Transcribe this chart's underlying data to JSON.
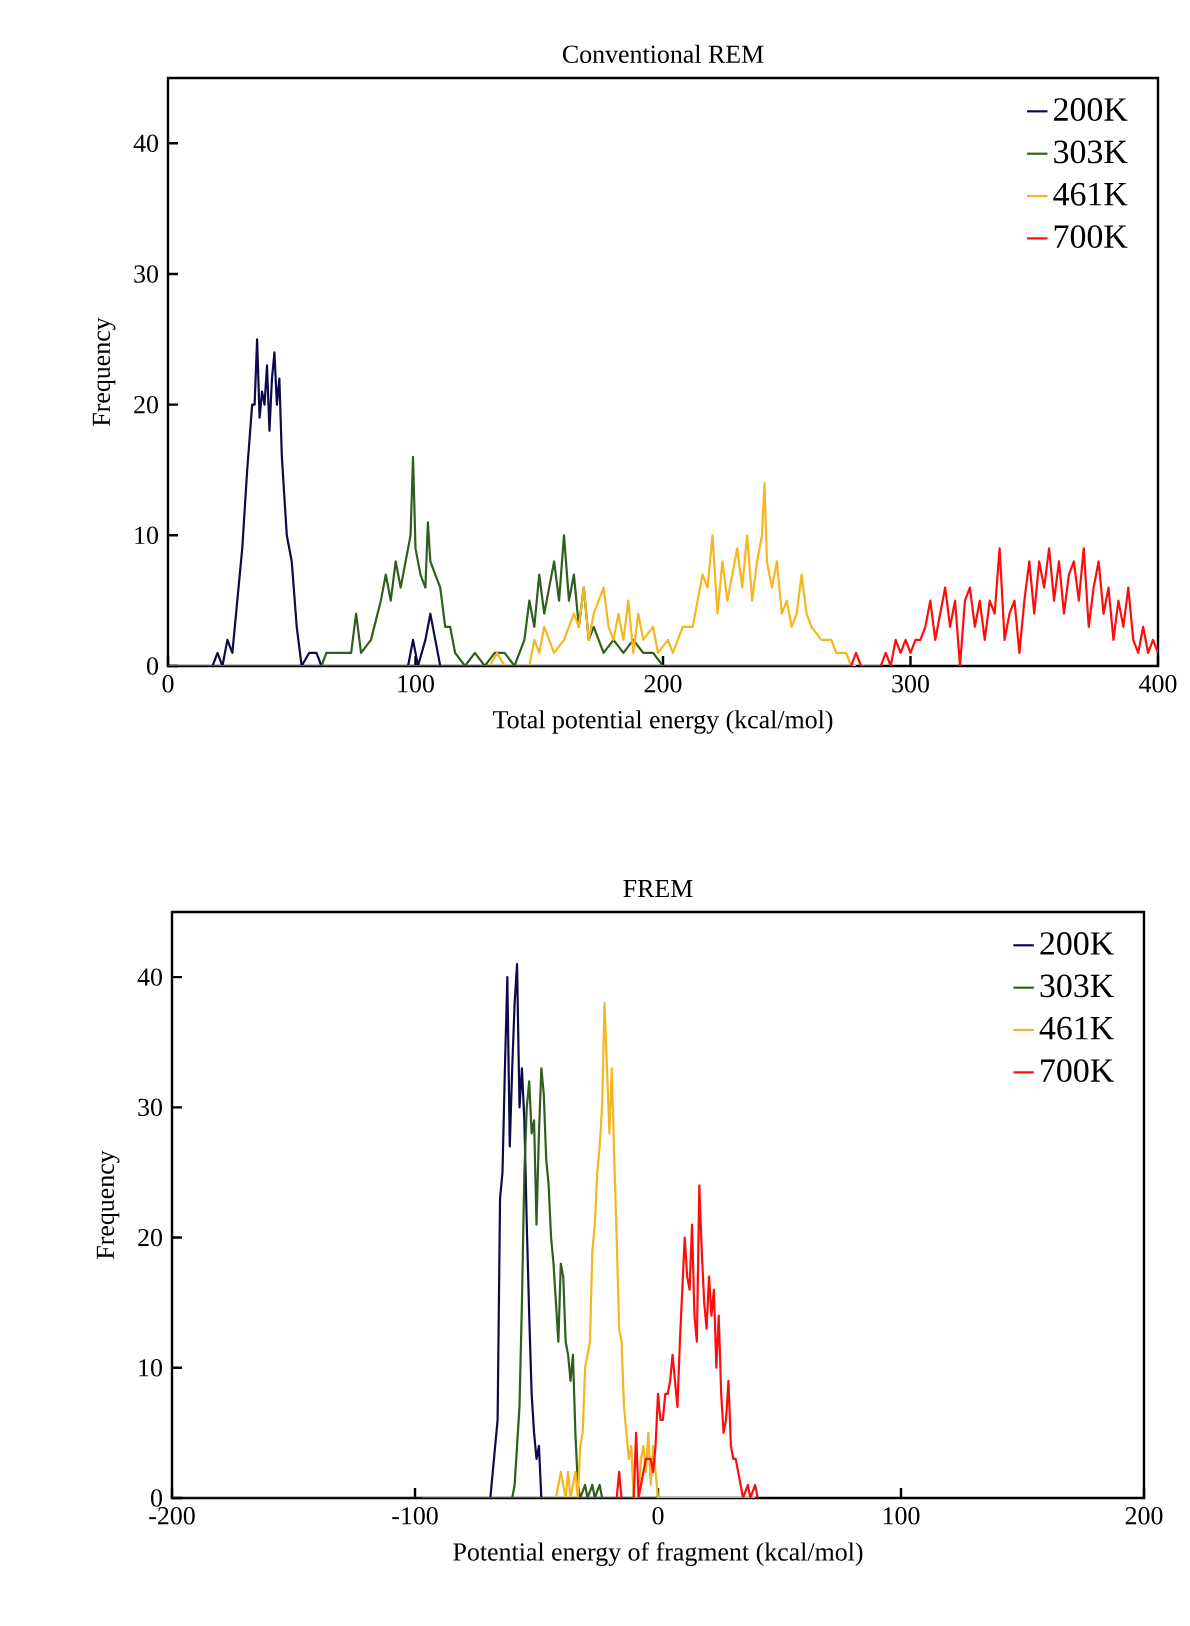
{
  "chart_data": [
    {
      "type": "line",
      "title": "Conventional REM",
      "xlabel": "Total potential energy (kcal/mol)",
      "ylabel": "Frequency",
      "xlim": [
        0,
        400
      ],
      "ylim": [
        0,
        45
      ],
      "xticks": [
        0,
        100,
        200,
        300,
        400
      ],
      "yticks": [
        0,
        10,
        20,
        30,
        40
      ],
      "legend": "top right",
      "series": [
        {
          "name": "200K",
          "color": "#0d0a4a",
          "x": [
            0,
            18,
            20,
            22,
            24,
            26,
            28,
            30,
            32,
            34,
            35,
            36,
            37,
            38,
            39,
            40,
            41,
            42,
            43,
            44,
            45,
            46,
            48,
            50,
            52,
            54,
            57,
            60,
            62,
            97,
            99,
            101,
            104,
            106,
            108,
            110,
            112
          ],
          "values": [
            0,
            0,
            1,
            0,
            2,
            1,
            5,
            9,
            15,
            20,
            20,
            25,
            19,
            21,
            20,
            23,
            18,
            22,
            24,
            20,
            22,
            16,
            10,
            8,
            3,
            0,
            1,
            1,
            0,
            0,
            2,
            0,
            2,
            4,
            2,
            0,
            0
          ]
        },
        {
          "name": "303K",
          "color": "#2e5f1d",
          "x": [
            0,
            62,
            64,
            70,
            74,
            76,
            78,
            82,
            86,
            88,
            90,
            92,
            94,
            96,
            98,
            99,
            100,
            102,
            104,
            105,
            106,
            108,
            110,
            112,
            114,
            116,
            120,
            124,
            128,
            132,
            136,
            140,
            144,
            146,
            148,
            150,
            152,
            154,
            156,
            158,
            160,
            162,
            164,
            166,
            168,
            170,
            172,
            176,
            180,
            184,
            188,
            192,
            196,
            200
          ],
          "values": [
            0,
            0,
            1,
            1,
            1,
            4,
            1,
            2,
            5,
            7,
            5,
            8,
            6,
            8,
            10,
            16,
            9,
            7,
            6,
            11,
            8,
            7,
            6,
            3,
            3,
            1,
            0,
            1,
            0,
            1,
            1,
            0,
            2,
            5,
            3,
            7,
            4,
            6,
            8,
            5,
            10,
            5,
            7,
            3,
            6,
            2,
            3,
            1,
            2,
            1,
            2,
            1,
            1,
            0
          ]
        },
        {
          "name": "461K",
          "color": "#f5b61f",
          "x": [
            0,
            130,
            133,
            136,
            146,
            148,
            150,
            152,
            156,
            160,
            164,
            166,
            168,
            170,
            172,
            176,
            178,
            180,
            182,
            184,
            186,
            188,
            190,
            192,
            196,
            198,
            202,
            204,
            208,
            210,
            212,
            214,
            216,
            218,
            220,
            222,
            224,
            226,
            228,
            230,
            232,
            234,
            236,
            238,
            240,
            241,
            242,
            244,
            246,
            248,
            250,
            252,
            254,
            256,
            258,
            260,
            264,
            268,
            270,
            274,
            276,
            278
          ],
          "values": [
            0,
            0,
            1,
            0,
            0,
            2,
            1,
            3,
            1,
            2,
            4,
            3,
            6,
            2,
            4,
            6,
            3,
            2,
            4,
            2,
            5,
            1,
            4,
            2,
            3,
            1,
            2,
            1,
            3,
            3,
            3,
            5,
            7,
            6,
            10,
            4,
            8,
            5,
            7,
            9,
            6,
            10,
            5,
            8,
            10,
            14,
            8,
            6,
            8,
            4,
            5,
            3,
            4,
            7,
            4,
            3,
            2,
            2,
            1,
            1,
            0,
            0
          ]
        },
        {
          "name": "700K",
          "color": "#ff0d0d",
          "x": [
            0,
            276,
            278,
            280,
            288,
            290,
            292,
            294,
            296,
            298,
            300,
            302,
            304,
            306,
            308,
            310,
            312,
            314,
            316,
            318,
            320,
            322,
            324,
            326,
            328,
            330,
            332,
            334,
            336,
            338,
            340,
            342,
            344,
            346,
            348,
            350,
            352,
            354,
            356,
            358,
            360,
            362,
            364,
            366,
            368,
            370,
            372,
            374,
            376,
            378,
            380,
            382,
            384,
            386,
            388,
            390,
            392,
            394,
            396,
            398,
            400
          ],
          "values": [
            0,
            0,
            1,
            0,
            0,
            1,
            0,
            2,
            1,
            2,
            1,
            2,
            2,
            3,
            5,
            2,
            4,
            6,
            3,
            5,
            0,
            5,
            6,
            3,
            5,
            2,
            5,
            4,
            9,
            2,
            4,
            5,
            1,
            5,
            8,
            4,
            8,
            6,
            9,
            5,
            8,
            4,
            7,
            8,
            5,
            9,
            3,
            6,
            8,
            4,
            6,
            2,
            5,
            3,
            6,
            2,
            1,
            3,
            1,
            2,
            1
          ]
        }
      ]
    },
    {
      "type": "line",
      "title": "FREM",
      "xlabel": "Potential energy of fragment (kcal/mol)",
      "ylabel": "Frequency",
      "xlim": [
        -200,
        200
      ],
      "ylim": [
        0,
        45
      ],
      "xticks": [
        -200,
        -100,
        0,
        100,
        200
      ],
      "yticks": [
        0,
        10,
        20,
        30,
        40
      ],
      "legend": "top right",
      "series": [
        {
          "name": "200K",
          "color": "#0d0a4a",
          "x": [
            -200,
            -69,
            -67,
            -66,
            -65,
            -64,
            -63,
            -62,
            -61,
            -60,
            -59,
            -58,
            -57,
            -56,
            -55,
            -54,
            -53,
            -52,
            -51,
            -50,
            -49,
            -48,
            -40
          ],
          "values": [
            0,
            0,
            4,
            6,
            23,
            25,
            33,
            40,
            27,
            33,
            38,
            41,
            30,
            33,
            29,
            21,
            14,
            8,
            5,
            3,
            4,
            0,
            0
          ]
        },
        {
          "name": "303K",
          "color": "#2e5f1d",
          "x": [
            -60,
            -59,
            -58,
            -57,
            -56,
            -55,
            -54,
            -53,
            -52,
            -51,
            -50,
            -49,
            -48,
            -47,
            -46,
            -45,
            -44,
            -43,
            -42,
            -41,
            -40,
            -39,
            -38,
            -37,
            -36,
            -35,
            -34,
            -33,
            -32,
            -30,
            -29,
            -27,
            -26,
            -24,
            -23,
            0
          ],
          "values": [
            0,
            1,
            4,
            7,
            15,
            25,
            30,
            32,
            28,
            29,
            21,
            28,
            33,
            31,
            26,
            24,
            20,
            18,
            15,
            12,
            18,
            17,
            12,
            11,
            9,
            11,
            5,
            1,
            0,
            1,
            0,
            1,
            0,
            1,
            0,
            0
          ]
        },
        {
          "name": "461K",
          "color": "#f5b61f",
          "x": [
            -42,
            -40,
            -38,
            -37,
            -36,
            -34,
            -33,
            -32,
            -31,
            -30,
            -29,
            -28,
            -27,
            -26,
            -25,
            -24,
            -23,
            -22,
            -21,
            -20,
            -19,
            -18,
            -17,
            -16,
            -15,
            -14,
            -13,
            -12,
            -11,
            -10,
            -8,
            -7,
            -6,
            -5,
            -4,
            -3,
            -2,
            -1,
            0,
            40
          ],
          "values": [
            0,
            2,
            0,
            2,
            0,
            2,
            0,
            4,
            5,
            10,
            11,
            12,
            19,
            21,
            25,
            27,
            30,
            38,
            33,
            28,
            33,
            26,
            20,
            13,
            12,
            7,
            5,
            3,
            4,
            0,
            0,
            3,
            4,
            2,
            5,
            1,
            4,
            2,
            0,
            0
          ]
        },
        {
          "name": "700K",
          "color": "#ff0d0d",
          "x": [
            -97,
            -17,
            -16,
            -15,
            -10,
            -9,
            -8,
            -6,
            -5,
            -3,
            -2,
            -1,
            0,
            1,
            2,
            3,
            4,
            5,
            6,
            7,
            8,
            9,
            10,
            11,
            12,
            13,
            14,
            15,
            16,
            17,
            18,
            19,
            20,
            21,
            22,
            23,
            24,
            25,
            26,
            27,
            28,
            29,
            30,
            31,
            32,
            33,
            34,
            35,
            37,
            38,
            40,
            41
          ],
          "values": [
            0,
            0,
            2,
            0,
            0,
            5,
            0,
            2,
            3,
            3,
            2,
            4,
            8,
            6,
            6,
            8,
            8,
            9,
            11,
            9,
            7,
            12,
            16,
            20,
            17,
            16,
            21,
            14,
            12,
            24,
            19,
            15,
            13,
            17,
            14,
            16,
            10,
            14,
            8,
            5,
            6,
            9,
            4,
            3,
            3,
            2,
            1,
            0,
            1,
            0,
            1,
            0
          ]
        }
      ]
    }
  ]
}
